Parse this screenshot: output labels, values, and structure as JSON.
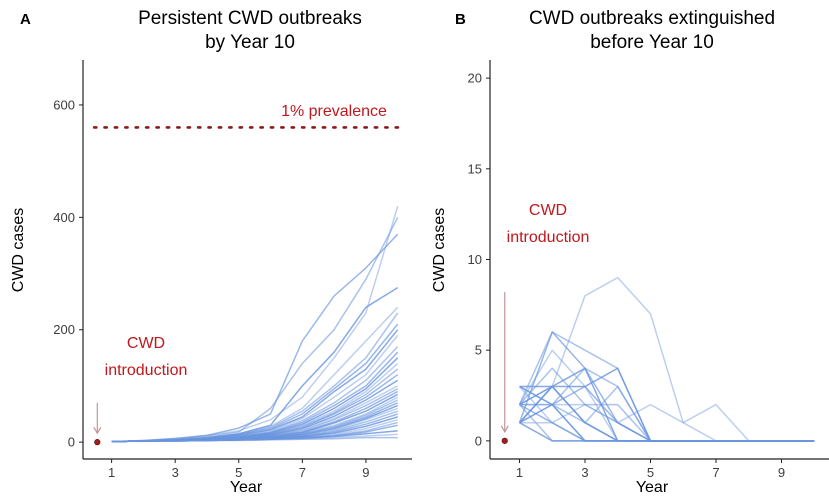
{
  "chart_data": [
    {
      "type": "line",
      "panel_label": "A",
      "title": [
        "Persistent CWD outbreaks",
        "by Year 10"
      ],
      "xlabel": "Year",
      "ylabel": "CWD cases",
      "xlim": [
        0.1,
        10.45
      ],
      "ylim": [
        -30,
        680
      ],
      "xticks": [
        1,
        3,
        5,
        7,
        9
      ],
      "yticks": [
        0,
        200,
        400,
        600
      ],
      "reference_line": {
        "y": 560,
        "label": "1% prevalence",
        "style": "dotted",
        "color": "#8b1a1a"
      },
      "introduction": {
        "label": [
          "CWD",
          "introduction"
        ],
        "x": 0.55,
        "y": 0,
        "arrow_top": 70
      },
      "x": [
        1,
        2,
        3,
        4,
        5,
        6,
        7,
        8,
        9,
        10
      ],
      "series": [
        [
          1,
          3,
          7,
          12,
          20,
          40,
          80,
          150,
          230,
          420
        ],
        [
          1,
          2,
          5,
          10,
          18,
          60,
          140,
          200,
          290,
          400
        ],
        [
          1,
          3,
          6,
          12,
          25,
          50,
          180,
          260,
          310,
          370
        ],
        [
          1,
          2,
          4,
          8,
          15,
          30,
          100,
          160,
          240,
          275
        ],
        [
          1,
          2,
          4,
          8,
          14,
          28,
          60,
          120,
          180,
          240
        ],
        [
          1,
          2,
          4,
          7,
          14,
          26,
          55,
          100,
          150,
          230
        ],
        [
          1,
          2,
          4,
          7,
          13,
          24,
          50,
          95,
          140,
          210
        ],
        [
          1,
          2,
          3,
          6,
          12,
          22,
          45,
          90,
          130,
          200
        ],
        [
          1,
          2,
          3,
          6,
          11,
          20,
          42,
          80,
          120,
          190
        ],
        [
          1,
          2,
          3,
          5,
          10,
          18,
          38,
          70,
          110,
          170
        ],
        [
          1,
          2,
          3,
          5,
          10,
          17,
          35,
          65,
          100,
          160
        ],
        [
          1,
          2,
          3,
          5,
          9,
          16,
          32,
          60,
          95,
          150
        ],
        [
          1,
          2,
          3,
          5,
          9,
          15,
          30,
          55,
          90,
          140
        ],
        [
          1,
          2,
          3,
          4,
          8,
          14,
          28,
          52,
          85,
          130
        ],
        [
          1,
          2,
          3,
          4,
          8,
          14,
          26,
          50,
          80,
          120
        ],
        [
          1,
          2,
          3,
          4,
          7,
          13,
          24,
          46,
          75,
          110
        ],
        [
          1,
          2,
          3,
          4,
          7,
          12,
          22,
          42,
          70,
          100
        ],
        [
          1,
          2,
          3,
          4,
          7,
          12,
          20,
          40,
          65,
          95
        ],
        [
          1,
          2,
          3,
          4,
          6,
          11,
          18,
          36,
          60,
          90
        ],
        [
          1,
          2,
          3,
          4,
          6,
          10,
          17,
          34,
          55,
          85
        ],
        [
          1,
          2,
          3,
          4,
          6,
          10,
          16,
          30,
          50,
          80
        ],
        [
          1,
          2,
          3,
          4,
          6,
          9,
          15,
          28,
          48,
          75
        ],
        [
          1,
          2,
          3,
          4,
          5,
          9,
          14,
          26,
          45,
          70
        ],
        [
          1,
          2,
          3,
          4,
          5,
          8,
          13,
          24,
          42,
          65
        ],
        [
          1,
          2,
          3,
          4,
          5,
          8,
          12,
          22,
          40,
          60
        ],
        [
          1,
          2,
          3,
          3,
          5,
          7,
          11,
          20,
          36,
          55
        ],
        [
          1,
          2,
          3,
          3,
          5,
          7,
          10,
          18,
          32,
          50
        ],
        [
          1,
          2,
          3,
          3,
          4,
          6,
          10,
          16,
          28,
          45
        ],
        [
          1,
          2,
          2,
          3,
          4,
          6,
          9,
          14,
          24,
          40
        ],
        [
          1,
          2,
          2,
          3,
          4,
          6,
          8,
          12,
          20,
          35
        ],
        [
          1,
          2,
          2,
          3,
          4,
          5,
          8,
          11,
          18,
          30
        ],
        [
          1,
          2,
          2,
          3,
          4,
          5,
          7,
          10,
          15,
          20
        ],
        [
          1,
          2,
          2,
          3,
          4,
          5,
          6,
          8,
          11,
          14
        ],
        [
          1,
          2,
          2,
          3,
          3,
          4,
          5,
          6,
          8,
          8
        ]
      ]
    },
    {
      "type": "line",
      "panel_label": "B",
      "title": [
        "CWD outbreaks extinguished",
        "before Year 10"
      ],
      "xlabel": "Year",
      "ylabel": "CWD cases",
      "xlim": [
        0.1,
        10.45
      ],
      "ylim": [
        -1,
        21
      ],
      "xticks": [
        1,
        3,
        5,
        7,
        9
      ],
      "yticks": [
        0,
        5,
        10,
        15,
        20
      ],
      "introduction": {
        "label": [
          "CWD",
          "introduction"
        ],
        "x": 0.55,
        "y": 0,
        "arrow_top": 8.2
      },
      "x": [
        1,
        2,
        3,
        4,
        5,
        6,
        7,
        8,
        9,
        10
      ],
      "series": [
        [
          2,
          3,
          8,
          9,
          7,
          1,
          2,
          0,
          0,
          0
        ],
        [
          2,
          6,
          5,
          4,
          0,
          0,
          0,
          0,
          0,
          0
        ],
        [
          1,
          6,
          4,
          1,
          0,
          0,
          0,
          0,
          0,
          0
        ],
        [
          3,
          3,
          4,
          0,
          0,
          0,
          0,
          0,
          0,
          0
        ],
        [
          2,
          5,
          3,
          0,
          0,
          0,
          0,
          0,
          0,
          0
        ],
        [
          2,
          4,
          2,
          2,
          0,
          0,
          0,
          0,
          0,
          0
        ],
        [
          3,
          2,
          3,
          1,
          0,
          0,
          0,
          0,
          0,
          0
        ],
        [
          1,
          3,
          3,
          4,
          0,
          0,
          0,
          0,
          0,
          0
        ],
        [
          2,
          2,
          2,
          1,
          2,
          1,
          0,
          0,
          0,
          0
        ],
        [
          1,
          2,
          1,
          3,
          0,
          0,
          0,
          0,
          0,
          0
        ],
        [
          2,
          1,
          0,
          0,
          0,
          0,
          0,
          0,
          0,
          0
        ],
        [
          1,
          0,
          0,
          0,
          0,
          0,
          0,
          0,
          0,
          0
        ],
        [
          3,
          1,
          0,
          0,
          0,
          0,
          0,
          0,
          0,
          0
        ],
        [
          2,
          0,
          0,
          0,
          0,
          0,
          0,
          0,
          0,
          0
        ],
        [
          1,
          2,
          0,
          0,
          0,
          0,
          0,
          0,
          0,
          0
        ],
        [
          2,
          3,
          1,
          0,
          0,
          0,
          0,
          0,
          0,
          0
        ],
        [
          1,
          1,
          2,
          1,
          0,
          0,
          0,
          0,
          0,
          0
        ],
        [
          2,
          2,
          4,
          3,
          0,
          0,
          0,
          0,
          0,
          0
        ],
        [
          3,
          2,
          0,
          0,
          0,
          0,
          0,
          0,
          0,
          0
        ],
        [
          1,
          3,
          1,
          0,
          0,
          0,
          0,
          0,
          0,
          0
        ]
      ]
    }
  ],
  "colors": {
    "series": "#6a95df",
    "reference": "#8b1a1a",
    "annotation": "#c0181c",
    "intro_point": "#a51c1c",
    "arrow": "#c2949a"
  }
}
